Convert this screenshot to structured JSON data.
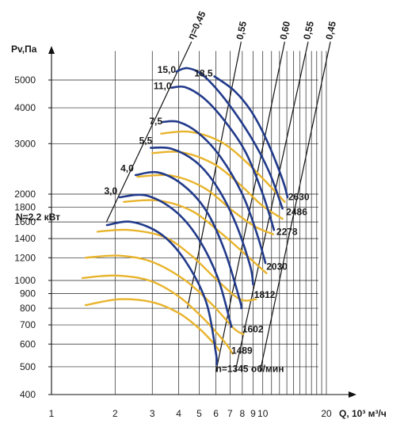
{
  "chart_data": {
    "type": "line",
    "xlabel": "Q, 10³ м³/ч",
    "ylabel": "Pv,Па",
    "x_scale": "log",
    "y_scale": "log",
    "xlim": [
      1,
      20
    ],
    "ylim": [
      400,
      6000
    ],
    "grid": true,
    "x_ticks": [
      1,
      2,
      3,
      4,
      5,
      6,
      7,
      8,
      9,
      10,
      20
    ],
    "y_ticks": [
      400,
      500,
      600,
      700,
      800,
      900,
      1000,
      1200,
      1400,
      1600,
      1800,
      2000,
      3000,
      4000,
      5000
    ],
    "colors": {
      "blue": "#213a8a",
      "yellow": "#e8b42c",
      "line": "#111111",
      "grid": "#222222"
    },
    "power_labels": [
      {
        "text": "15,0",
        "x": 3.88,
        "y": 5300
      },
      {
        "text": "18,5",
        "x": 5.8,
        "y": 5150
      },
      {
        "text": "11,0",
        "x": 3.7,
        "y": 4650
      },
      {
        "text": "7,5",
        "x": 3.35,
        "y": 3500
      },
      {
        "text": "5,5",
        "x": 3.0,
        "y": 3000
      },
      {
        "text": "4,0",
        "x": 2.45,
        "y": 2400
      },
      {
        "text": "3,0",
        "x": 2.05,
        "y": 2000
      },
      {
        "text": "N=2,2 кВт",
        "x": 1.1,
        "y": 1620
      }
    ],
    "speed_labels": [
      {
        "text": "2630",
        "x": 13.2,
        "y": 1910
      },
      {
        "text": "2486",
        "x": 12.9,
        "y": 1690
      },
      {
        "text": "2278",
        "x": 11.6,
        "y": 1440
      },
      {
        "text": "2030",
        "x": 10.4,
        "y": 1090
      },
      {
        "text": "1812",
        "x": 9.1,
        "y": 870
      },
      {
        "text": "1602",
        "x": 8.0,
        "y": 660
      },
      {
        "text": "1489",
        "x": 7.1,
        "y": 555
      },
      {
        "text": "n=1345 об/мин",
        "x": 6.0,
        "y": 480
      }
    ],
    "efficiency_labels": [
      "η=0,45",
      "0,55",
      "0,60",
      "0,55",
      "0,45"
    ],
    "efficiency_lines": [
      {
        "label": "η=0,45",
        "from": [
          1.82,
          1600
        ],
        "to": [
          4.6,
          6800
        ]
      },
      {
        "label": "0,55",
        "from": [
          4.4,
          800
        ],
        "to": [
          7.9,
          6800
        ]
      },
      {
        "label": "0,60",
        "from": [
          6.0,
          480
        ],
        "to": [
          12.7,
          6800
        ]
      },
      {
        "label": "0,55",
        "from": [
          7.4,
          480
        ],
        "to": [
          16.4,
          6800
        ]
      },
      {
        "label": "0,45",
        "from": [
          9.7,
          480
        ],
        "to": [
          20.9,
          6800
        ]
      }
    ],
    "series": [
      {
        "speed": "2630",
        "power": "18,5",
        "color": "blue",
        "points": [
          [
            5.9,
            5150
          ],
          [
            7.3,
            4600
          ],
          [
            8.8,
            3900
          ],
          [
            10.4,
            3100
          ],
          [
            12.4,
            2250
          ],
          [
            13.1,
            1950
          ]
        ]
      },
      {
        "speed": "2486",
        "power": "15,0",
        "color": "blue",
        "points": [
          [
            3.9,
            5350
          ],
          [
            4.4,
            5500
          ],
          [
            5.2,
            5200
          ],
          [
            6.6,
            4300
          ],
          [
            8.7,
            3200
          ],
          [
            10.7,
            2400
          ],
          [
            12.4,
            1780
          ]
        ]
      },
      {
        "speed": "2278",
        "power": "11,0",
        "color": "blue",
        "points": [
          [
            3.7,
            4700
          ],
          [
            4.3,
            4720
          ],
          [
            5.3,
            4300
          ],
          [
            6.6,
            3600
          ],
          [
            8.3,
            2800
          ],
          [
            10.0,
            2000
          ],
          [
            11.3,
            1500
          ]
        ]
      },
      {
        "speed": "2030",
        "power": "7,5",
        "color": "blue",
        "points": [
          [
            3.35,
            3570
          ],
          [
            4.0,
            3570
          ],
          [
            5.0,
            3250
          ],
          [
            6.3,
            2700
          ],
          [
            8.0,
            2000
          ],
          [
            9.4,
            1450
          ],
          [
            10.3,
            1150
          ]
        ]
      },
      {
        "speed": "1812",
        "power": "5,5",
        "color": "blue",
        "points": [
          [
            2.95,
            2900
          ],
          [
            3.7,
            2880
          ],
          [
            4.8,
            2600
          ],
          [
            6.0,
            2150
          ],
          [
            7.4,
            1600
          ],
          [
            8.7,
            1130
          ],
          [
            9.0,
            970
          ]
        ]
      },
      {
        "speed": "1602",
        "power": "4,0",
        "color": "blue",
        "points": [
          [
            2.5,
            2330
          ],
          [
            3.2,
            2380
          ],
          [
            4.2,
            2150
          ],
          [
            5.4,
            1750
          ],
          [
            6.6,
            1270
          ],
          [
            7.8,
            850
          ],
          [
            7.9,
            800
          ]
        ]
      },
      {
        "speed": "1489",
        "power": "3,0",
        "color": "blue",
        "points": [
          [
            2.1,
            1950
          ],
          [
            2.8,
            1980
          ],
          [
            3.8,
            1760
          ],
          [
            4.9,
            1420
          ],
          [
            6.1,
            1030
          ],
          [
            7.0,
            720
          ],
          [
            7.1,
            690
          ]
        ]
      },
      {
        "speed": "1345",
        "power": "2,2",
        "color": "blue",
        "points": [
          [
            1.83,
            1560
          ],
          [
            2.4,
            1600
          ],
          [
            3.3,
            1450
          ],
          [
            4.3,
            1170
          ],
          [
            5.4,
            840
          ],
          [
            6.0,
            560
          ],
          [
            6.05,
            510
          ]
        ]
      },
      {
        "speed": "2630",
        "power": "",
        "color": "yellow",
        "points": [
          [
            3.3,
            3250
          ],
          [
            4.5,
            3300
          ],
          [
            6.3,
            3050
          ],
          [
            8.3,
            2600
          ],
          [
            10.4,
            2200
          ],
          [
            12.7,
            1880
          ]
        ]
      },
      {
        "speed": "2486",
        "power": "",
        "color": "yellow",
        "points": [
          [
            3.0,
            2780
          ],
          [
            4.1,
            2800
          ],
          [
            5.8,
            2560
          ],
          [
            7.7,
            2180
          ],
          [
            9.9,
            1830
          ],
          [
            12.4,
            1640
          ]
        ]
      },
      {
        "speed": "2278",
        "power": "",
        "color": "yellow",
        "points": [
          [
            2.55,
            2300
          ],
          [
            3.7,
            2320
          ],
          [
            5.3,
            2100
          ],
          [
            7.2,
            1750
          ],
          [
            9.2,
            1540
          ],
          [
            11.2,
            1450
          ]
        ]
      },
      {
        "speed": "2030",
        "power": "",
        "color": "yellow",
        "points": [
          [
            2.2,
            1880
          ],
          [
            3.2,
            1900
          ],
          [
            4.6,
            1750
          ],
          [
            6.3,
            1470
          ],
          [
            8.3,
            1230
          ],
          [
            10.4,
            1060
          ]
        ]
      },
      {
        "speed": "1812",
        "power": "",
        "color": "yellow",
        "points": [
          [
            1.65,
            1480
          ],
          [
            2.3,
            1500
          ],
          [
            3.4,
            1420
          ],
          [
            4.6,
            1220
          ],
          [
            6.1,
            1000
          ],
          [
            7.8,
            860
          ],
          [
            9.3,
            860
          ]
        ]
      },
      {
        "speed": "1602",
        "power": "",
        "color": "yellow",
        "points": [
          [
            1.45,
            1200
          ],
          [
            2.1,
            1220
          ],
          [
            3.0,
            1160
          ],
          [
            4.3,
            1000
          ],
          [
            5.8,
            820
          ],
          [
            7.3,
            680
          ],
          [
            8.1,
            650
          ]
        ]
      },
      {
        "speed": "1489",
        "power": "",
        "color": "yellow",
        "points": [
          [
            1.4,
            1020
          ],
          [
            2.0,
            1040
          ],
          [
            2.9,
            1000
          ],
          [
            4.0,
            880
          ],
          [
            5.3,
            730
          ],
          [
            6.6,
            610
          ],
          [
            7.2,
            555
          ]
        ]
      },
      {
        "speed": "1345",
        "power": "",
        "color": "yellow",
        "points": [
          [
            1.45,
            820
          ],
          [
            2.1,
            860
          ],
          [
            3.0,
            840
          ],
          [
            4.0,
            770
          ],
          [
            5.0,
            680
          ],
          [
            5.9,
            600
          ],
          [
            6.2,
            570
          ]
        ]
      }
    ]
  }
}
